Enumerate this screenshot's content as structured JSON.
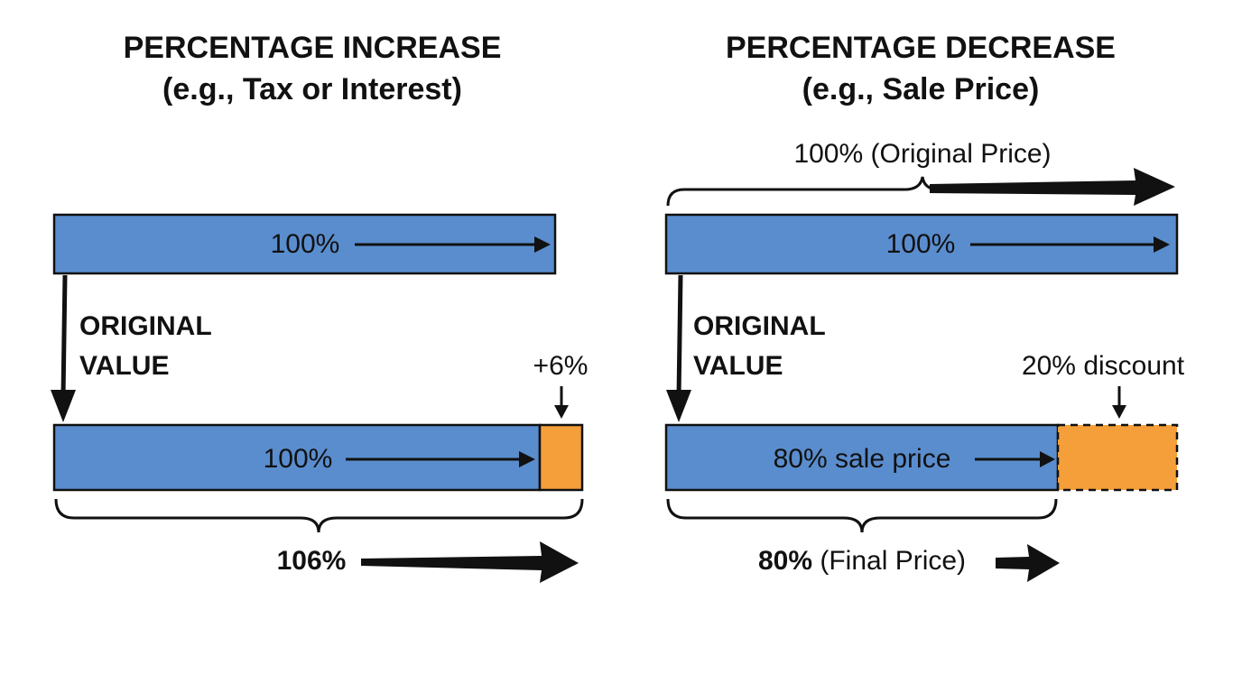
{
  "left": {
    "title": "PERCENTAGE INCREASE",
    "subtitle": "(e.g., Tax or Interest)",
    "top_bar_label": "100%",
    "side_label": [
      "ORIGINAL",
      "VALUE"
    ],
    "bottom_bar_label": "100%",
    "increase_label": "+6%",
    "total_label": "106%"
  },
  "right": {
    "title": "PERCENTAGE DECREASE",
    "subtitle": "(e.g., Sale Price)",
    "original_label": "100% (Original Price)",
    "top_bar_label": "100%",
    "side_label": [
      "ORIGINAL",
      "VALUE"
    ],
    "bottom_bar_label": "80% sale price",
    "discount_label": "20% discount",
    "total_label": {
      "bold": "80%",
      "rest": "(Final Price)"
    }
  }
}
